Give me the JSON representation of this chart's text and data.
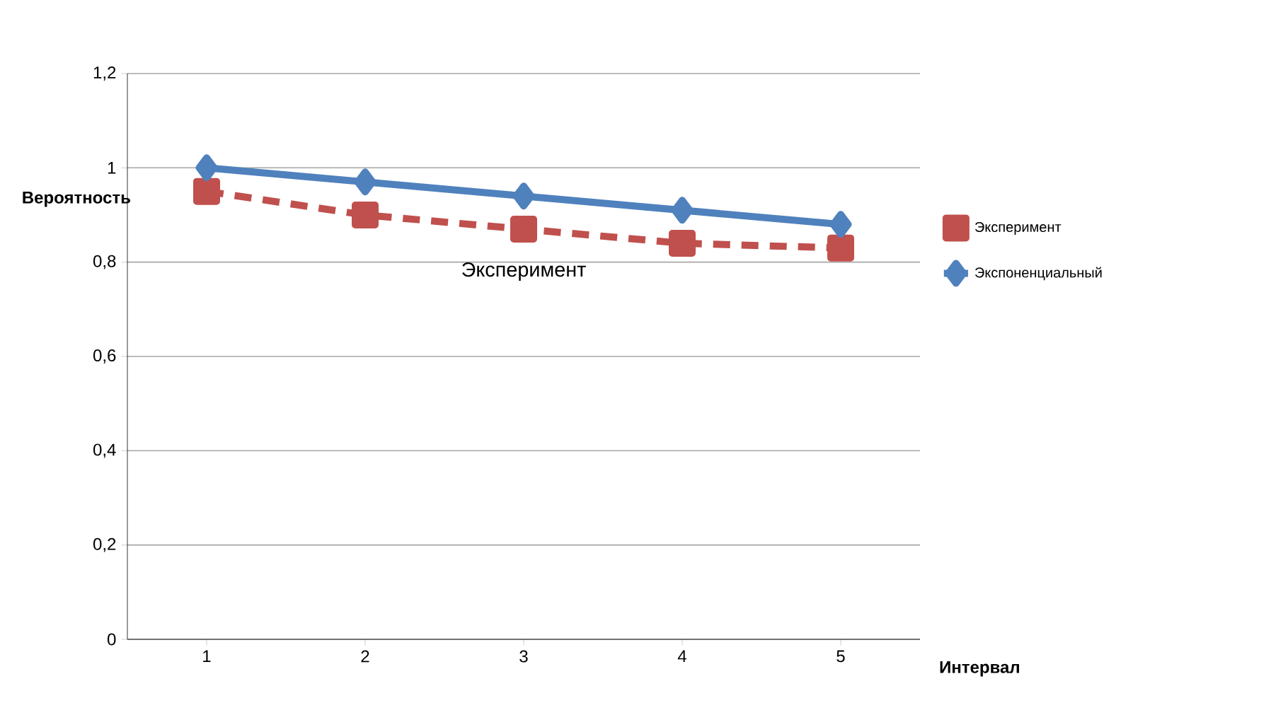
{
  "chart_data": {
    "type": "line",
    "xlabel": "Интервал",
    "ylabel": "Вероятность",
    "categories": [
      "1",
      "2",
      "3",
      "4",
      "5"
    ],
    "series": [
      {
        "name": "Эксперимент",
        "color": "#c0504d",
        "values": [
          0.95,
          0.9,
          0.87,
          0.84,
          0.83
        ],
        "marker": "square",
        "line_style": "dashed"
      },
      {
        "name": "Экспоненциальный",
        "color": "#4f81bd",
        "values": [
          1.0,
          0.97,
          0.94,
          0.91,
          0.88
        ],
        "marker": "diamond",
        "line_style": "solid"
      }
    ],
    "ylim": [
      0,
      1.2
    ],
    "yticks": [
      {
        "value": 0,
        "label": "0"
      },
      {
        "value": 0.2,
        "label": "0,2"
      },
      {
        "value": 0.4,
        "label": "0,4"
      },
      {
        "value": 0.6,
        "label": "0,6"
      },
      {
        "value": 0.8,
        "label": "0,8"
      },
      {
        "value": 1,
        "label": "1"
      },
      {
        "value": 1.2,
        "label": "1,2"
      }
    ],
    "grid": "y",
    "legend": "right",
    "annotations": [
      "Эксперимент"
    ]
  }
}
